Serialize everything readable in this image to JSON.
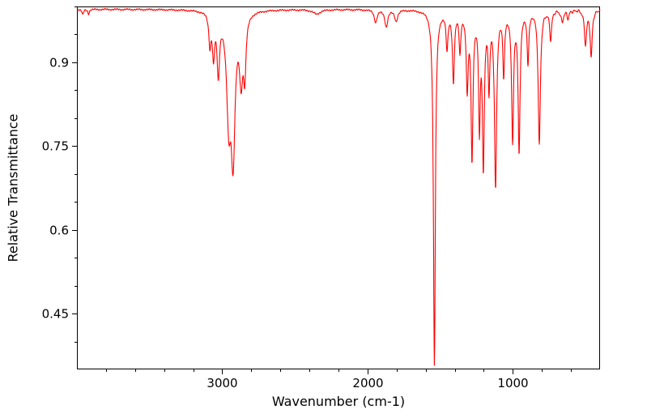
{
  "chart_data": {
    "type": "line",
    "title": "",
    "xlabel": "Wavenumber (cm-1)",
    "ylabel": "Relative Transmittance",
    "grid": false,
    "legend": false,
    "x_axis": {
      "min": 400,
      "max": 4000,
      "reversed": true,
      "major_ticks": [
        {
          "value": 3000,
          "label": "3000"
        },
        {
          "value": 2000,
          "label": "2000"
        },
        {
          "value": 1000,
          "label": "1000"
        }
      ],
      "minor_tick_values": [
        3800,
        3600,
        3400,
        3200,
        2800,
        2600,
        2400,
        2200,
        1800,
        1600,
        1400,
        1200,
        800,
        600
      ]
    },
    "y_axis": {
      "min": 0.35,
      "max": 1.0,
      "major_ticks": [
        {
          "value": 0.9,
          "label": "0.9"
        },
        {
          "value": 0.75,
          "label": "0.75"
        },
        {
          "value": 0.6,
          "label": "0.6"
        },
        {
          "value": 0.45,
          "label": "0.45"
        }
      ],
      "minor_tick_values": [
        0.4,
        0.5,
        0.55,
        0.65,
        0.7,
        0.8,
        0.85,
        0.95,
        1.0
      ]
    },
    "series": [
      {
        "color": "#ff0000",
        "baseline_transmittance": 0.995,
        "peaks_schema": [
          "center_wavenumber_cm-1",
          "depth",
          "half_width_cm-1"
        ],
        "peaks": [
          [
            3960,
            0.01,
            6
          ],
          [
            3920,
            0.008,
            6
          ],
          [
            3085,
            0.055,
            9
          ],
          [
            3060,
            0.075,
            9
          ],
          [
            3027,
            0.105,
            10
          ],
          [
            2955,
            0.18,
            18
          ],
          [
            2925,
            0.24,
            16
          ],
          [
            2870,
            0.11,
            14
          ],
          [
            2845,
            0.1,
            10
          ],
          [
            2350,
            0.008,
            30
          ],
          [
            1944,
            0.022,
            12
          ],
          [
            1871,
            0.03,
            12
          ],
          [
            1803,
            0.02,
            12
          ],
          [
            1540,
            0.635,
            8
          ],
          [
            1453,
            0.065,
            8
          ],
          [
            1409,
            0.125,
            8
          ],
          [
            1364,
            0.07,
            7
          ],
          [
            1314,
            0.135,
            8
          ],
          [
            1281,
            0.26,
            8
          ],
          [
            1230,
            0.2,
            7
          ],
          [
            1203,
            0.27,
            8
          ],
          [
            1164,
            0.13,
            7
          ],
          [
            1119,
            0.31,
            9
          ],
          [
            1063,
            0.11,
            7
          ],
          [
            1002,
            0.23,
            8
          ],
          [
            957,
            0.25,
            8
          ],
          [
            896,
            0.09,
            7
          ],
          [
            818,
            0.24,
            9
          ],
          [
            740,
            0.05,
            8
          ],
          [
            660,
            0.02,
            10
          ],
          [
            620,
            0.015,
            8
          ],
          [
            500,
            0.06,
            9
          ],
          [
            461,
            0.085,
            8
          ]
        ]
      }
    ]
  }
}
